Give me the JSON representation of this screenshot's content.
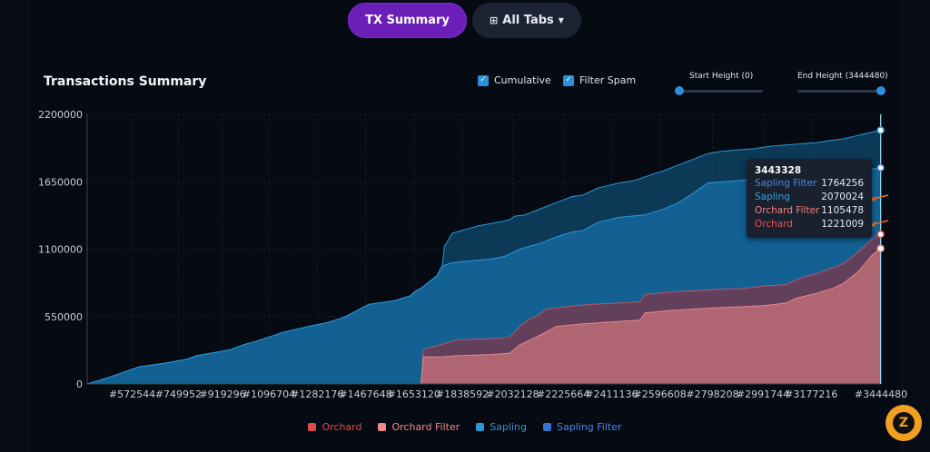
{
  "header": {
    "tx_summary_label": "TX Summary",
    "all_tabs_label": "All Tabs"
  },
  "controls": {
    "cumulative_label": "Cumulative",
    "filter_spam_label": "Filter Spam",
    "cumulative_checked": true,
    "filter_spam_checked": true,
    "start_height_label": "Start Height (0)",
    "end_height_label": "End Height (3444480)",
    "start_height_value": 0,
    "end_height_value": 3444480
  },
  "tooltip": {
    "height": "3443328",
    "rows": [
      {
        "label": "Sapling Filter",
        "value": "1764256",
        "color": "#4a86f0"
      },
      {
        "label": "Sapling",
        "value": "2070024",
        "color": "#2ea0e0"
      },
      {
        "label": "Orchard Filter",
        "value": "1105478",
        "color": "#f08080"
      },
      {
        "label": "Orchard",
        "value": "1221009",
        "color": "#f05050"
      }
    ]
  },
  "fab_label": "Z",
  "chart_data": {
    "type": "area",
    "title": "Transactions Summary",
    "ylim": [
      0,
      2200000
    ],
    "xlim": [
      400000,
      3444480
    ],
    "y_ticks": [
      0,
      550000,
      1100000,
      1650000,
      2200000
    ],
    "y_tick_labels": [
      "0",
      "550000",
      "1100000",
      "1650000",
      "2200000"
    ],
    "x_tick_labels": [
      "#572544",
      "#749952",
      "#919296",
      "#1096704",
      "#1282176",
      "#1467648",
      "#1653120",
      "#1838592",
      "#2032128",
      "#2225664",
      "#2411136",
      "#2596608",
      "#2798208",
      "#2991744",
      "#3177216",
      "#3444480"
    ],
    "x_tick_values": [
      572544,
      749952,
      919296,
      1096704,
      1282176,
      1467648,
      1653120,
      1838592,
      2032128,
      2225664,
      2411136,
      2596608,
      2798208,
      2991744,
      3177216,
      3444480
    ],
    "grid": true,
    "legend_position": "bottom",
    "series": [
      {
        "name": "Orchard",
        "color": "#e24a4a",
        "x": [
          400000,
          1680000,
          1690000,
          1740000,
          1820000,
          1950000,
          2020000,
          2060000,
          2090000,
          2130000,
          2160000,
          2280000,
          2340000,
          2440000,
          2520000,
          2540000,
          2640000,
          2800000,
          2920000,
          3000000,
          3080000,
          3120000,
          3160000,
          3200000,
          3260000,
          3300000,
          3360000,
          3410000,
          3444480
        ],
        "y": [
          0,
          0,
          280000,
          310000,
          360000,
          370000,
          380000,
          470000,
          520000,
          560000,
          610000,
          640000,
          650000,
          660000,
          670000,
          730000,
          750000,
          770000,
          780000,
          800000,
          810000,
          850000,
          880000,
          900000,
          950000,
          980000,
          1080000,
          1180000,
          1221009
        ]
      },
      {
        "name": "Orchard Filter",
        "color": "#f08a8a",
        "x": [
          400000,
          1680000,
          1690000,
          1760000,
          1820000,
          1950000,
          2020000,
          2060000,
          2100000,
          2140000,
          2200000,
          2300000,
          2440000,
          2520000,
          2540000,
          2640000,
          2800000,
          2920000,
          3000000,
          3080000,
          3120000,
          3200000,
          3260000,
          3300000,
          3360000,
          3410000,
          3444480
        ],
        "y": [
          0,
          0,
          220000,
          220000,
          230000,
          240000,
          250000,
          320000,
          360000,
          400000,
          470000,
          490000,
          510000,
          520000,
          580000,
          600000,
          620000,
          630000,
          640000,
          660000,
          700000,
          740000,
          780000,
          820000,
          920000,
          1050000,
          1105478
        ]
      },
      {
        "name": "Sapling",
        "color": "#2a98da",
        "x": [
          400000,
          450000,
          520000,
          600000,
          700000,
          780000,
          820000,
          900000,
          950000,
          1000000,
          1050000,
          1150000,
          1250000,
          1320000,
          1350000,
          1380000,
          1400000,
          1480000,
          1580000,
          1640000,
          1660000,
          1680000,
          1740000,
          1760000,
          1770000,
          1800000,
          1900000,
          1950000,
          2000000,
          2020000,
          2040000,
          2080000,
          2140000,
          2200000,
          2260000,
          2300000,
          2360000,
          2380000,
          2440000,
          2500000,
          2540000,
          2580000,
          2600000,
          2660000,
          2720000,
          2780000,
          2840000,
          2900000,
          2960000,
          3020000,
          3080000,
          3140000,
          3200000,
          3260000,
          3300000,
          3340000,
          3380000,
          3420000,
          3444480
        ],
        "y": [
          0,
          30000,
          80000,
          140000,
          170000,
          200000,
          230000,
          260000,
          280000,
          320000,
          350000,
          420000,
          470000,
          500000,
          520000,
          540000,
          560000,
          650000,
          680000,
          720000,
          760000,
          780000,
          880000,
          920000,
          1120000,
          1230000,
          1290000,
          1310000,
          1330000,
          1340000,
          1370000,
          1380000,
          1430000,
          1480000,
          1530000,
          1540000,
          1600000,
          1610000,
          1640000,
          1660000,
          1690000,
          1720000,
          1730000,
          1780000,
          1830000,
          1880000,
          1900000,
          1910000,
          1920000,
          1940000,
          1950000,
          1960000,
          1970000,
          1990000,
          2000000,
          2020000,
          2040000,
          2060000,
          2070024
        ]
      },
      {
        "name": "Sapling Filter",
        "color": "#3c72d6",
        "x": [
          400000,
          450000,
          520000,
          600000,
          700000,
          780000,
          820000,
          900000,
          950000,
          1000000,
          1050000,
          1150000,
          1250000,
          1320000,
          1350000,
          1380000,
          1400000,
          1480000,
          1580000,
          1640000,
          1660000,
          1680000,
          1740000,
          1760000,
          1800000,
          1900000,
          1950000,
          2000000,
          2040000,
          2060000,
          2140000,
          2200000,
          2260000,
          2300000,
          2360000,
          2440000,
          2540000,
          2600000,
          2660000,
          2720000,
          2780000,
          2840000,
          2900000,
          2960000,
          3040000,
          3120000,
          3180000,
          3240000,
          3300000,
          3360000,
          3400000,
          3444480
        ],
        "y": [
          0,
          30000,
          80000,
          140000,
          170000,
          200000,
          230000,
          260000,
          280000,
          320000,
          350000,
          420000,
          470000,
          500000,
          520000,
          540000,
          560000,
          650000,
          680000,
          720000,
          760000,
          780000,
          880000,
          960000,
          990000,
          1010000,
          1020000,
          1040000,
          1080000,
          1100000,
          1150000,
          1200000,
          1240000,
          1250000,
          1320000,
          1360000,
          1380000,
          1420000,
          1470000,
          1550000,
          1640000,
          1650000,
          1660000,
          1670000,
          1670000,
          1680000,
          1690000,
          1700000,
          1710000,
          1730000,
          1750000,
          1764256
        ]
      }
    ]
  }
}
